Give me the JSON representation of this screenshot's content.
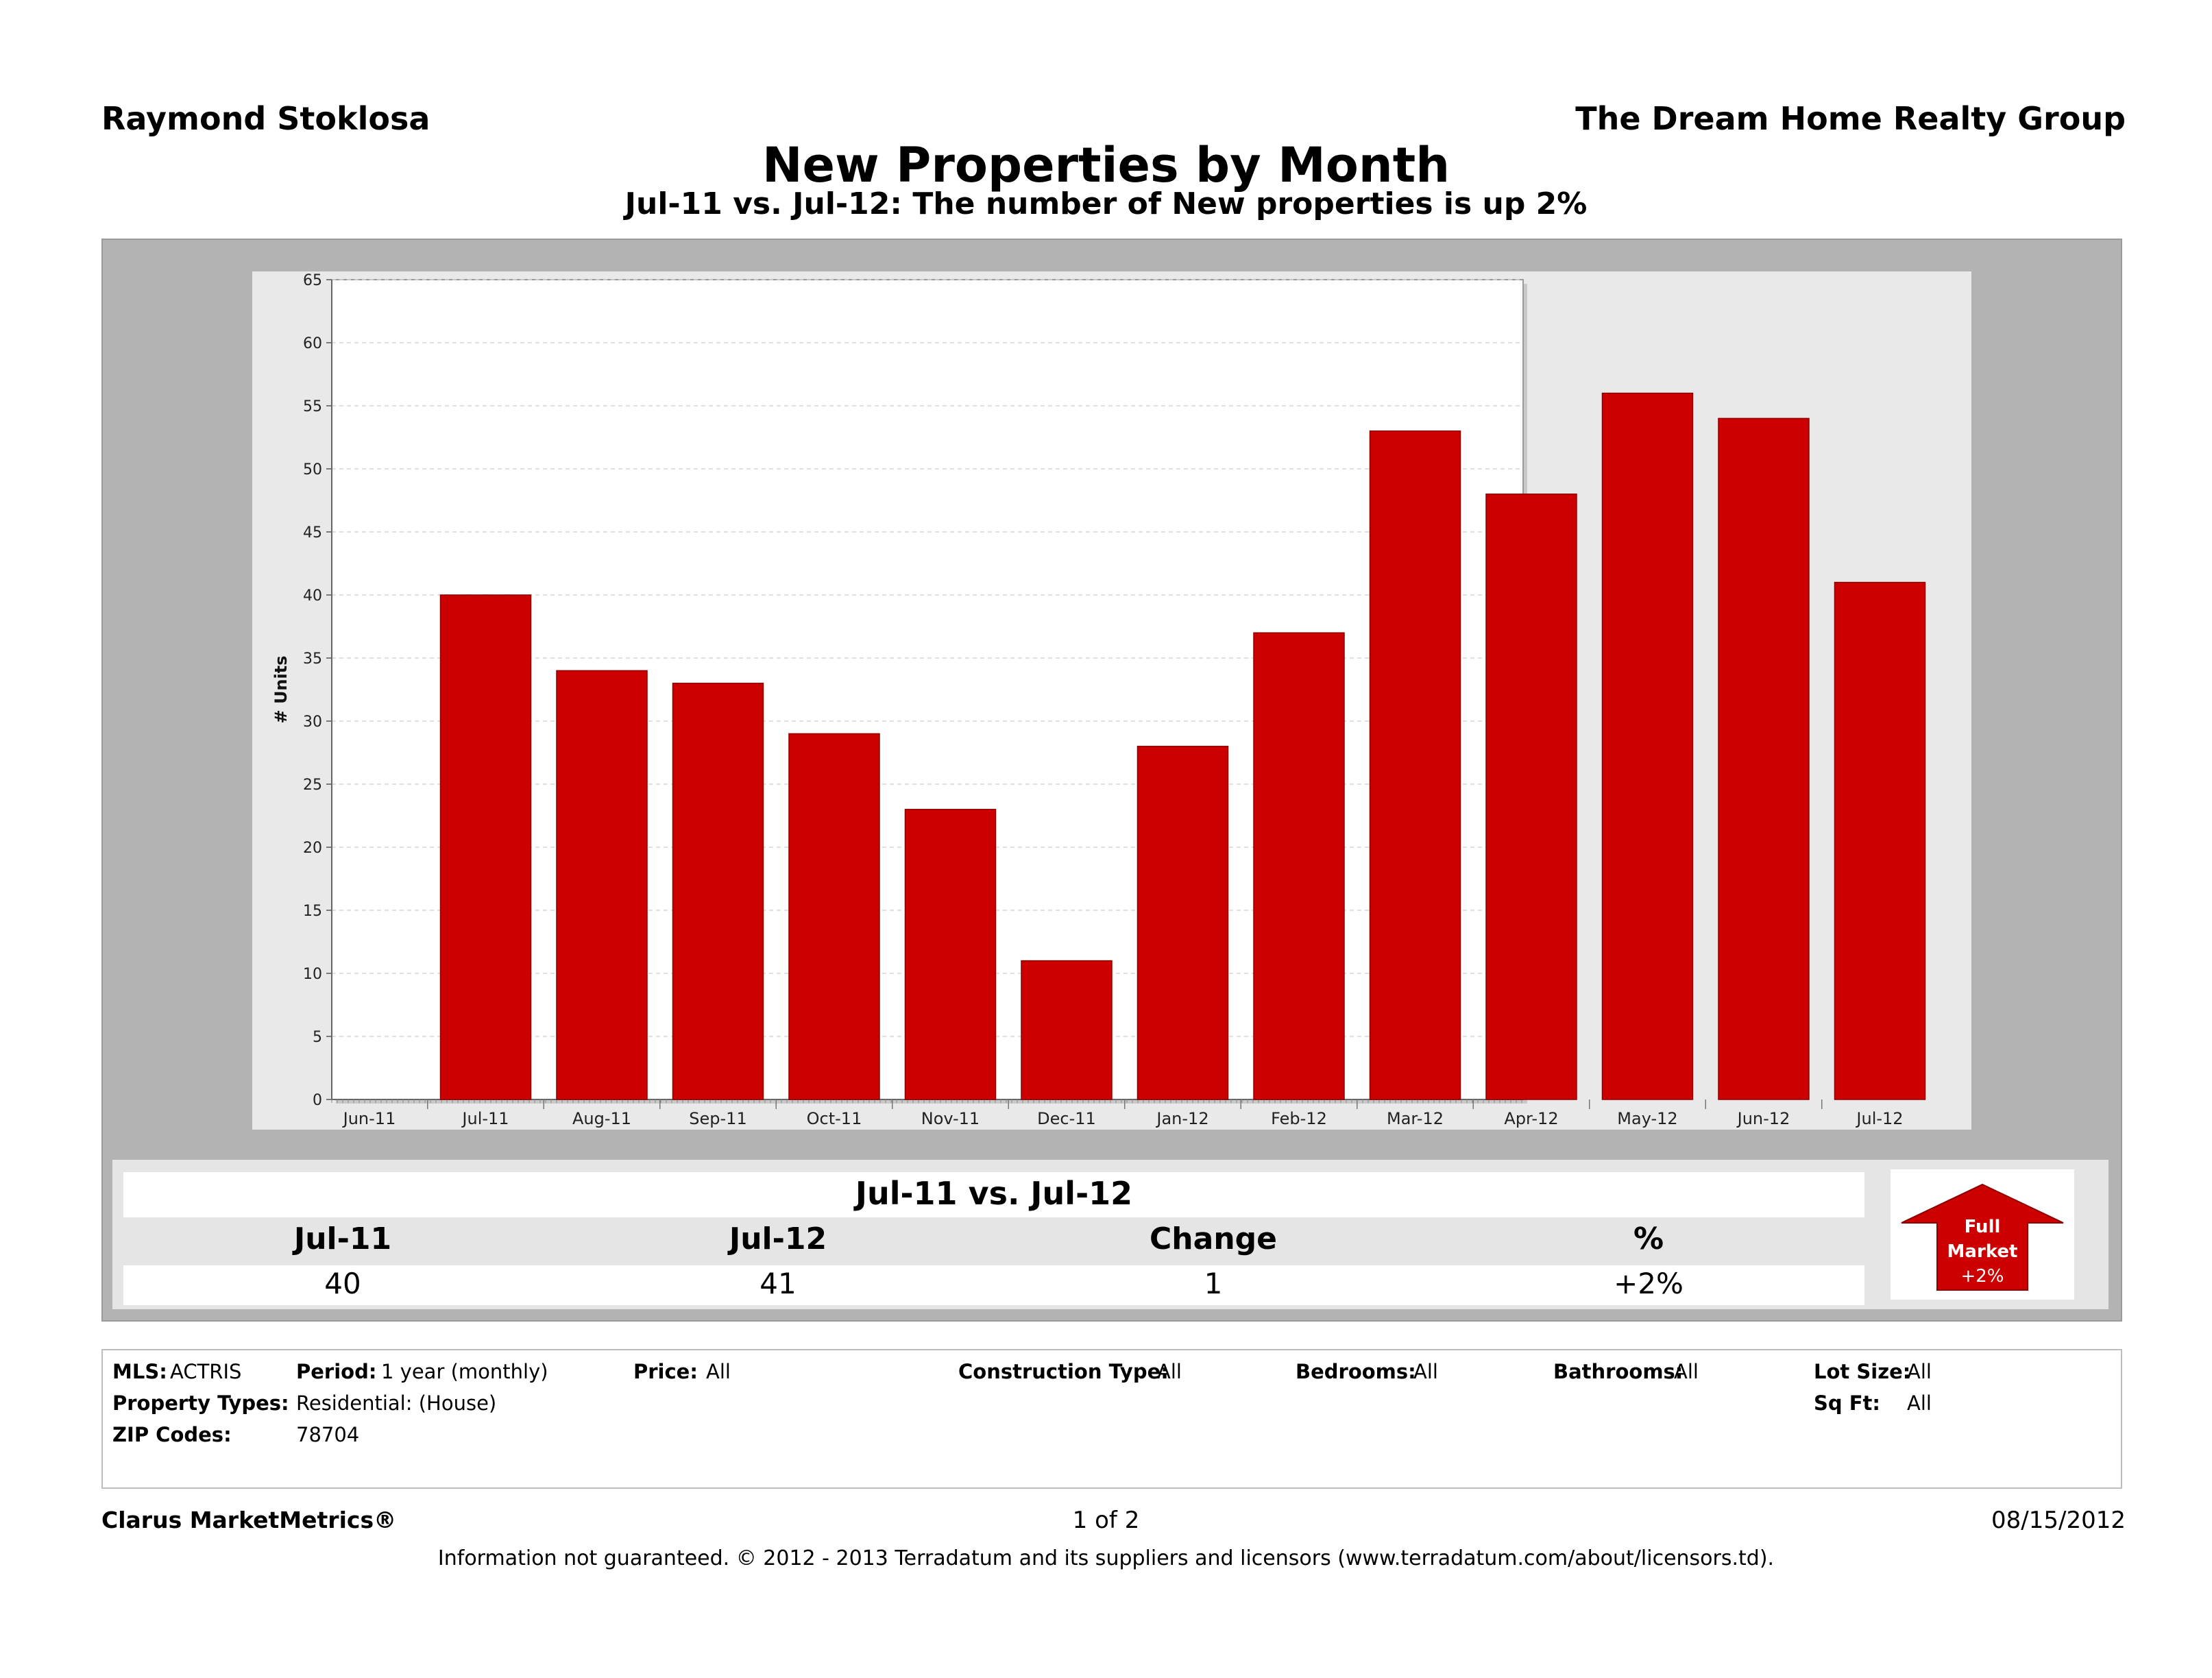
{
  "header": {
    "agent": "Raymond Stoklosa",
    "company": "The Dream Home Realty Group",
    "title": "New Properties by Month",
    "subtitle": "Jul-11 vs. Jul-12: The number of New properties is up 2%"
  },
  "chart_data": {
    "type": "bar",
    "ylabel": "# Units",
    "xlabel": "",
    "ylim": [
      0,
      65
    ],
    "yticks": [
      0,
      5,
      10,
      15,
      20,
      25,
      30,
      35,
      40,
      45,
      50,
      55,
      60,
      65
    ],
    "categories": [
      "Jun-11",
      "Jul-11",
      "Aug-11",
      "Sep-11",
      "Oct-11",
      "Nov-11",
      "Dec-11",
      "Jan-12",
      "Feb-12",
      "Mar-12",
      "Apr-12",
      "May-12",
      "Jun-12",
      "Jul-12"
    ],
    "values": [
      null,
      40,
      34,
      33,
      29,
      23,
      11,
      28,
      37,
      53,
      48,
      56,
      54,
      41
    ],
    "grid": true,
    "bar_color": "#cc0000"
  },
  "summary": {
    "heading": "Jul-11 vs. Jul-12",
    "labels": [
      "Jul-11",
      "Jul-12",
      "Change",
      "%"
    ],
    "values": [
      "40",
      "41",
      "1",
      "+2%"
    ],
    "badge": {
      "line1": "Full",
      "line2": "Market",
      "line3": "+2%",
      "direction": "up",
      "color": "#cc0000"
    }
  },
  "criteria": {
    "mls_label": "MLS:",
    "mls_value": "ACTRIS",
    "period_label": "Period:",
    "period_value": "1 year (monthly)",
    "price_label": "Price:",
    "price_value": "All",
    "construction_label": "Construction Type:",
    "construction_value": "All",
    "bedrooms_label": "Bedrooms:",
    "bedrooms_value": "All",
    "bathrooms_label": "Bathrooms:",
    "bathrooms_value": "All",
    "lotsize_label": "Lot Size:",
    "lotsize_value": "All",
    "proptypes_label": "Property Types:",
    "proptypes_value": "Residential: (House)",
    "sqft_label": "Sq Ft:",
    "sqft_value": "All",
    "zip_label": "ZIP Codes:",
    "zip_value": "78704"
  },
  "footer": {
    "brand": "Clarus MarketMetrics®",
    "page": "1 of 2",
    "date": "08/15/2012",
    "disclaimer": "Information not guaranteed.  © 2012 - 2013 Terradatum and its suppliers and licensors (www.terradatum.com/about/licensors.td)."
  }
}
